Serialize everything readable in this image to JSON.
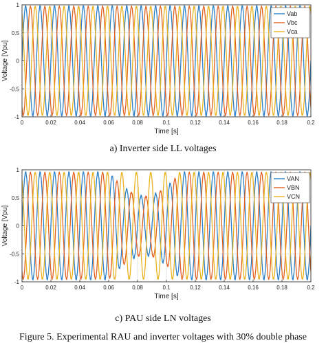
{
  "chart_data": [
    {
      "type": "line",
      "title": "",
      "xlabel": "Time [s]",
      "ylabel": "Voltage [Vpu]",
      "xlim": [
        0,
        0.2
      ],
      "ylim": [
        -1,
        1
      ],
      "xticks": [
        "0",
        "0.02",
        "0.04",
        "0.06",
        "0.08",
        "0.1",
        "0.12",
        "0.14",
        "0.16",
        "0.18",
        "0.2"
      ],
      "yticks": [
        "-1",
        "-0.5",
        "0",
        "0.5",
        "1"
      ],
      "grid": true,
      "legend_position": "top-right",
      "waveform": {
        "frequency_hz": 100,
        "amplitude": 0.97,
        "phases_deg": [
          0,
          -120,
          120
        ],
        "sag_window_s": [
          0.06,
          0.11
        ],
        "sag_depth": 0.0
      },
      "series": [
        {
          "name": "Vab",
          "color": "#2a7fc7"
        },
        {
          "name": "Vbc",
          "color": "#e2601e"
        },
        {
          "name": "Vca",
          "color": "#eab21e"
        }
      ]
    },
    {
      "type": "line",
      "title": "",
      "xlabel": "Time [s]",
      "ylabel": "Voltage [Vpu]",
      "xlim": [
        0,
        0.2
      ],
      "ylim": [
        -1,
        1
      ],
      "xticks": [
        "0",
        "0.02",
        "0.04",
        "0.06",
        "0.08",
        "0.1",
        "0.12",
        "0.14",
        "0.16",
        "0.18",
        "0.2"
      ],
      "yticks": [
        "-1",
        "-0.5",
        "0",
        "0.5",
        "1"
      ],
      "grid": true,
      "legend_position": "top-right",
      "waveform": {
        "frequency_hz": 100,
        "amplitude": 0.95,
        "phases_deg": [
          0,
          -120,
          120
        ],
        "sag_window_s": [
          0.06,
          0.11
        ],
        "sag_depth": 0.45
      },
      "series": [
        {
          "name": "VAN",
          "color": "#2a7fc7"
        },
        {
          "name": "VBN",
          "color": "#e2601e"
        },
        {
          "name": "VCN",
          "color": "#eab21e"
        }
      ]
    }
  ],
  "captions": {
    "top": "a) Inverter side LL voltages",
    "bottom": "c) PAU side LN voltages",
    "figure": "Figure 5. Experimental RAU and inverter voltages with 30% double phase"
  }
}
